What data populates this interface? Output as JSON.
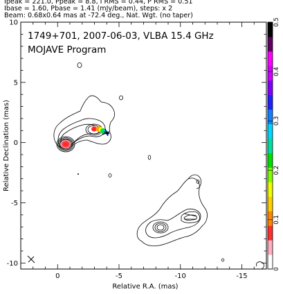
{
  "header": {
    "line1": "Ipeak = 221.0, Ppeak = 8.8, I RMS = 0.44, P RMS = 0.51",
    "line2": "Ibase = 1.60, Pbase = 1.41 (mJy/beam), steps: x 2",
    "line3": "Beam: 0.68x0.64 mas at -72.4 deg., Nat. Wgt. (no taper)"
  },
  "chart_data": {
    "type": "contour",
    "title": "1749+701, 2007-06-03, VLBA 15.4 GHz",
    "subtitle": "MOJAVE Program",
    "xlabel": "Relative R.A. (mas)",
    "ylabel": "Relative Declination (mas)",
    "xlim": [
      3,
      -17
    ],
    "ylim": [
      -10.5,
      10
    ],
    "x_ticks": [
      0,
      -5,
      -10,
      -15
    ],
    "x_tick_labels": [
      "0",
      "-5",
      "-10",
      "-15"
    ],
    "y_ticks": [
      10,
      5,
      0,
      -5,
      -10
    ],
    "y_tick_labels": [
      "10",
      "5",
      "0",
      "-5",
      "-10"
    ],
    "colorbar": {
      "ticks": [
        0,
        0.1,
        0.2,
        0.3,
        0.4,
        0.5
      ],
      "tick_labels": [
        "0",
        "0.1",
        "0.2",
        "0.3",
        "0.4",
        "0.5"
      ],
      "range": [
        0,
        0.5
      ],
      "colors": [
        "#ffffff",
        "#ffb0c0",
        "#ff3030",
        "#ff8800",
        "#ffd000",
        "#f0ff00",
        "#80ff00",
        "#00e000",
        "#00e0a0",
        "#00d8ff",
        "#1080ff",
        "#2020ff",
        "#8000ff",
        "#d000ff",
        "#ff00ff",
        "#600060",
        "#000000"
      ]
    },
    "core": {
      "x": 0,
      "y": 0
    },
    "beam": {
      "major": 0.68,
      "minor": 0.64,
      "pa_deg": -72.4
    }
  }
}
